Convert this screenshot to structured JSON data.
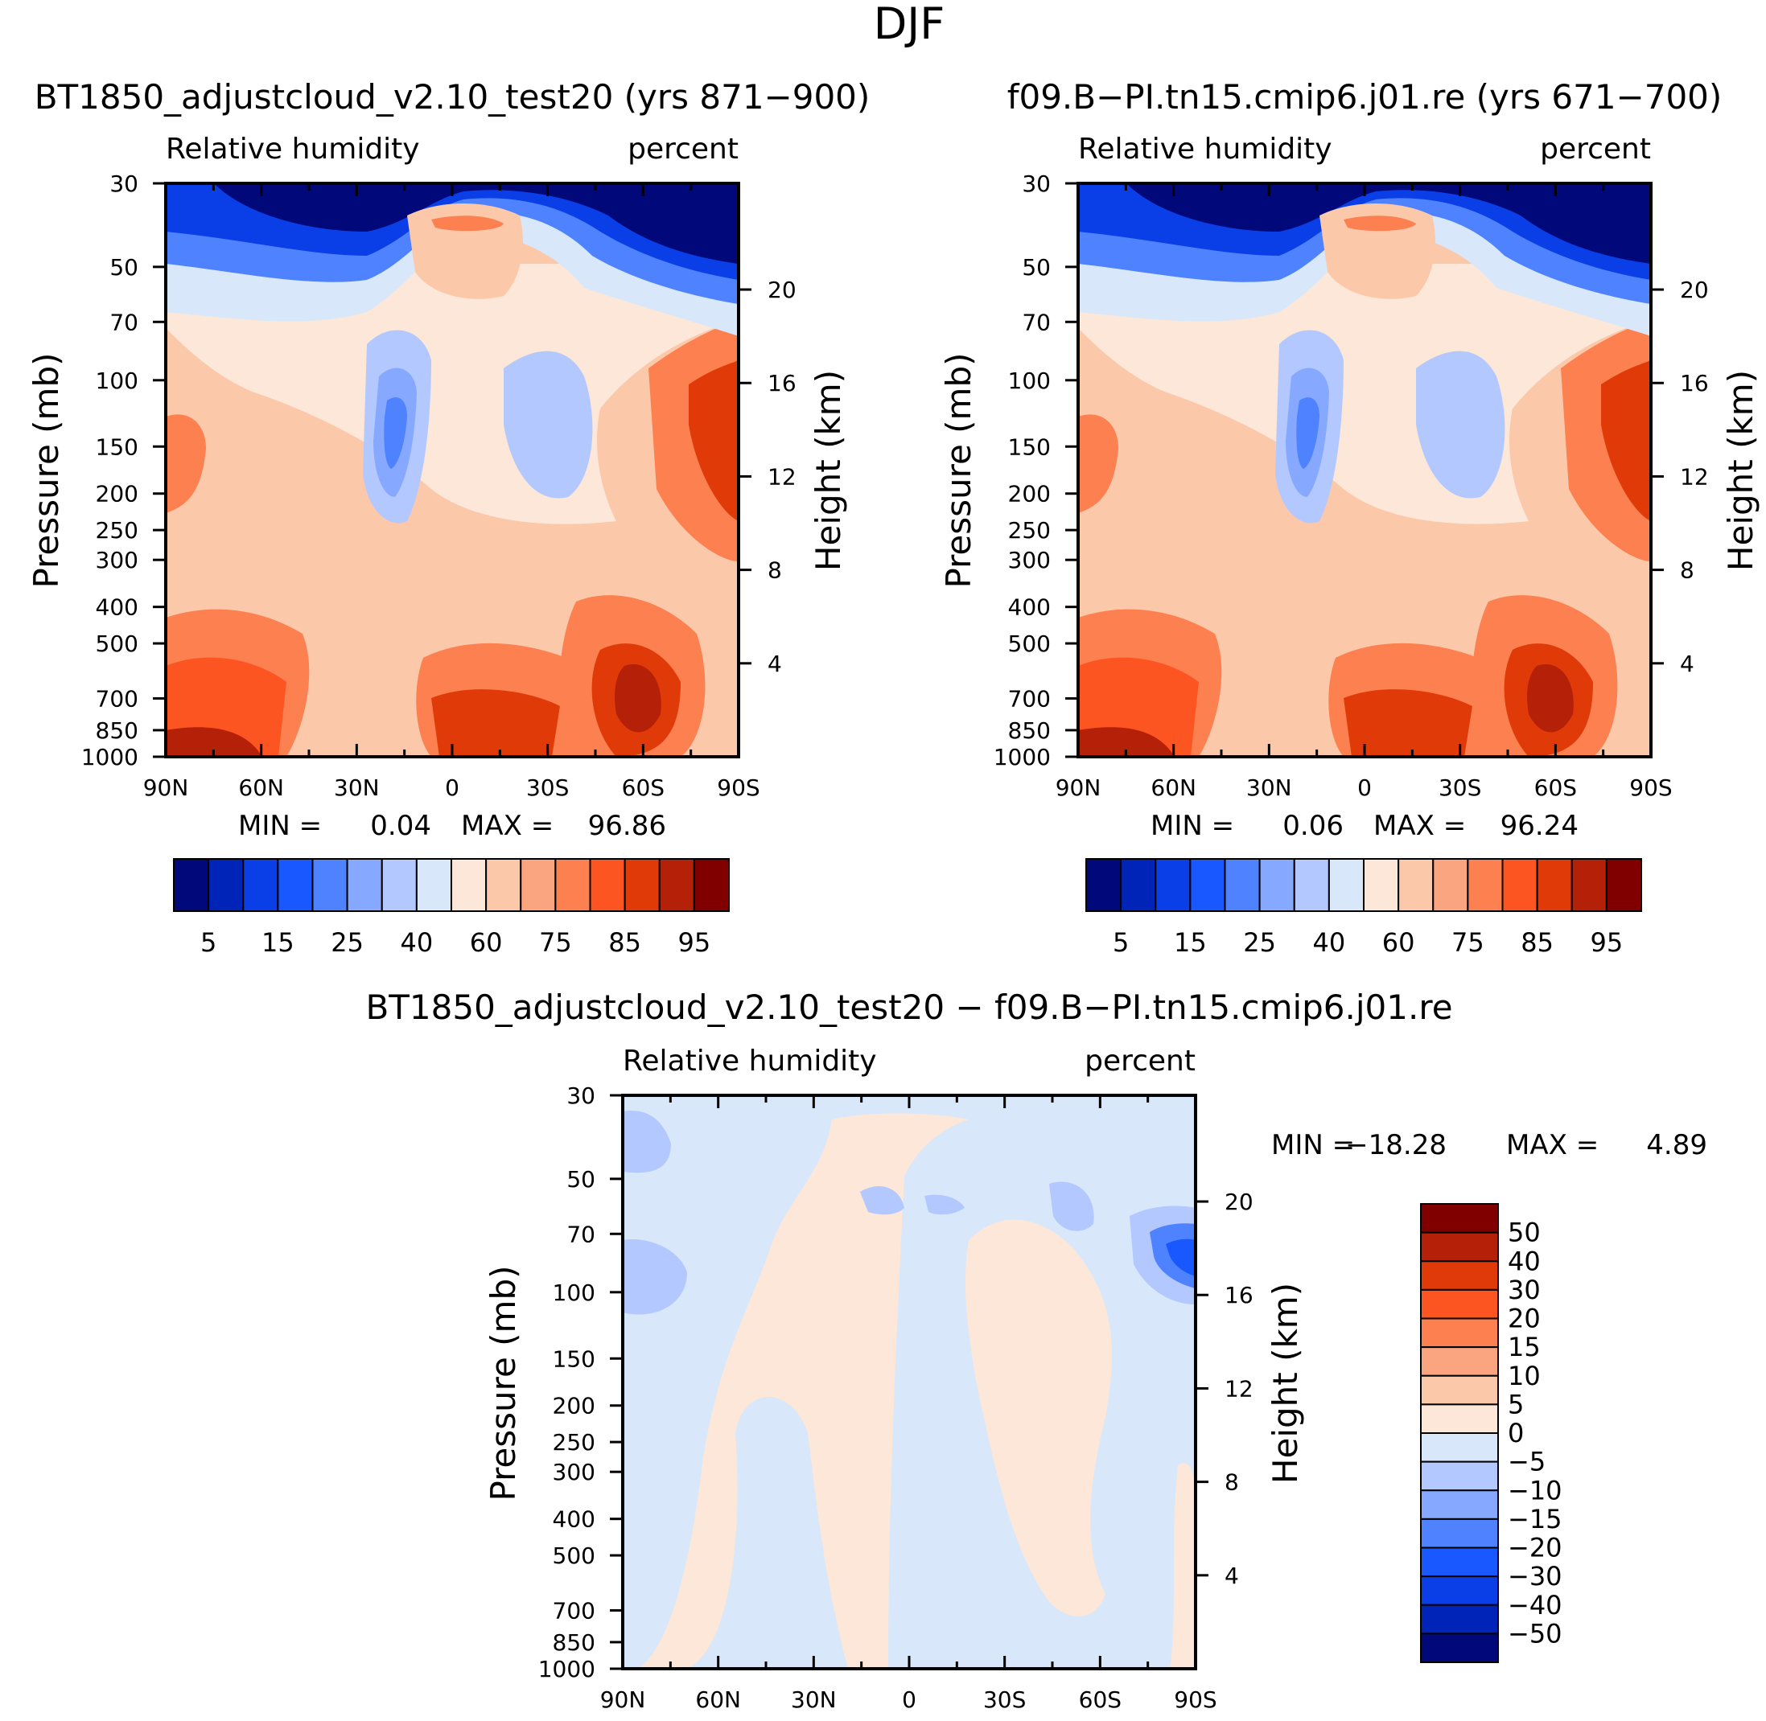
{
  "figure": {
    "title": "DJF"
  },
  "colors": {
    "abs_palette": [
      "#00087a",
      "#0024b8",
      "#0a3ee6",
      "#1a58ff",
      "#4f82ff",
      "#86a9ff",
      "#b3c8ff",
      "#d8e8fa",
      "#fce7d8",
      "#fcc8aa",
      "#fba480",
      "#fc8050",
      "#fc5522",
      "#e03a08",
      "#b42008",
      "#800000"
    ],
    "diff_palette": [
      "#00087a",
      "#0024b8",
      "#0a3ee6",
      "#1a58ff",
      "#4f82ff",
      "#86a9ff",
      "#b3c8ff",
      "#d8e8fa",
      "#fce7d8",
      "#fcc8aa",
      "#fba480",
      "#fc8050",
      "#fc5522",
      "#e03a08",
      "#b42008",
      "#800000"
    ]
  },
  "chart_data": [
    {
      "id": "panel1",
      "type": "contour",
      "title": "BT1850_adjustcloud_v2.10_test20 (yrs 871-900)",
      "variable": "Relative humidity",
      "units": "percent",
      "xlabel": "",
      "ylabel": "Pressure (mb)",
      "ylabel_right": "Height (km)",
      "x_ticks": [
        "90N",
        "60N",
        "30N",
        "0",
        "30S",
        "60S",
        "90S"
      ],
      "y_ticks": [
        30,
        50,
        70,
        100,
        150,
        200,
        250,
        300,
        400,
        500,
        700,
        850,
        1000
      ],
      "height_ticks": [
        20,
        16,
        12,
        8,
        4
      ],
      "min_label": "MIN =",
      "min_value": "0.04",
      "max_label": "MAX =",
      "max_value": "96.86",
      "colorbar_labels": [
        "5",
        "15",
        "25",
        "40",
        "60",
        "75",
        "85",
        "95"
      ]
    },
    {
      "id": "panel2",
      "type": "contour",
      "title": "f09.B-PI.tn15.cmip6.j01.re (yrs 671-700)",
      "variable": "Relative humidity",
      "units": "percent",
      "xlabel": "",
      "ylabel": "Pressure (mb)",
      "ylabel_right": "Height (km)",
      "x_ticks": [
        "90N",
        "60N",
        "30N",
        "0",
        "30S",
        "60S",
        "90S"
      ],
      "y_ticks": [
        30,
        50,
        70,
        100,
        150,
        200,
        250,
        300,
        400,
        500,
        700,
        850,
        1000
      ],
      "height_ticks": [
        20,
        16,
        12,
        8,
        4
      ],
      "min_label": "MIN =",
      "min_value": "0.06",
      "max_label": "MAX =",
      "max_value": "96.24",
      "colorbar_labels": [
        "5",
        "15",
        "25",
        "40",
        "60",
        "75",
        "85",
        "95"
      ]
    },
    {
      "id": "panel3",
      "type": "contour",
      "title": "BT1850_adjustcloud_v2.10_test20 - f09.B-PI.tn15.cmip6.j01.re",
      "variable": "Relative humidity",
      "units": "percent",
      "xlabel": "",
      "ylabel": "Pressure (mb)",
      "ylabel_right": "Height (km)",
      "x_ticks": [
        "90N",
        "60N",
        "30N",
        "0",
        "30S",
        "60S",
        "90S"
      ],
      "y_ticks": [
        30,
        50,
        70,
        100,
        150,
        200,
        250,
        300,
        400,
        500,
        700,
        850,
        1000
      ],
      "height_ticks": [
        20,
        16,
        12,
        8,
        4
      ],
      "min_label": "MIN =",
      "min_value": "-18.28",
      "max_label": "MAX =",
      "max_value": "4.89",
      "colorbar_labels": [
        "50",
        "40",
        "30",
        "20",
        "15",
        "10",
        "5",
        "0",
        "-5",
        "-10",
        "-15",
        "-20",
        "-30",
        "-40",
        "-50"
      ]
    }
  ]
}
